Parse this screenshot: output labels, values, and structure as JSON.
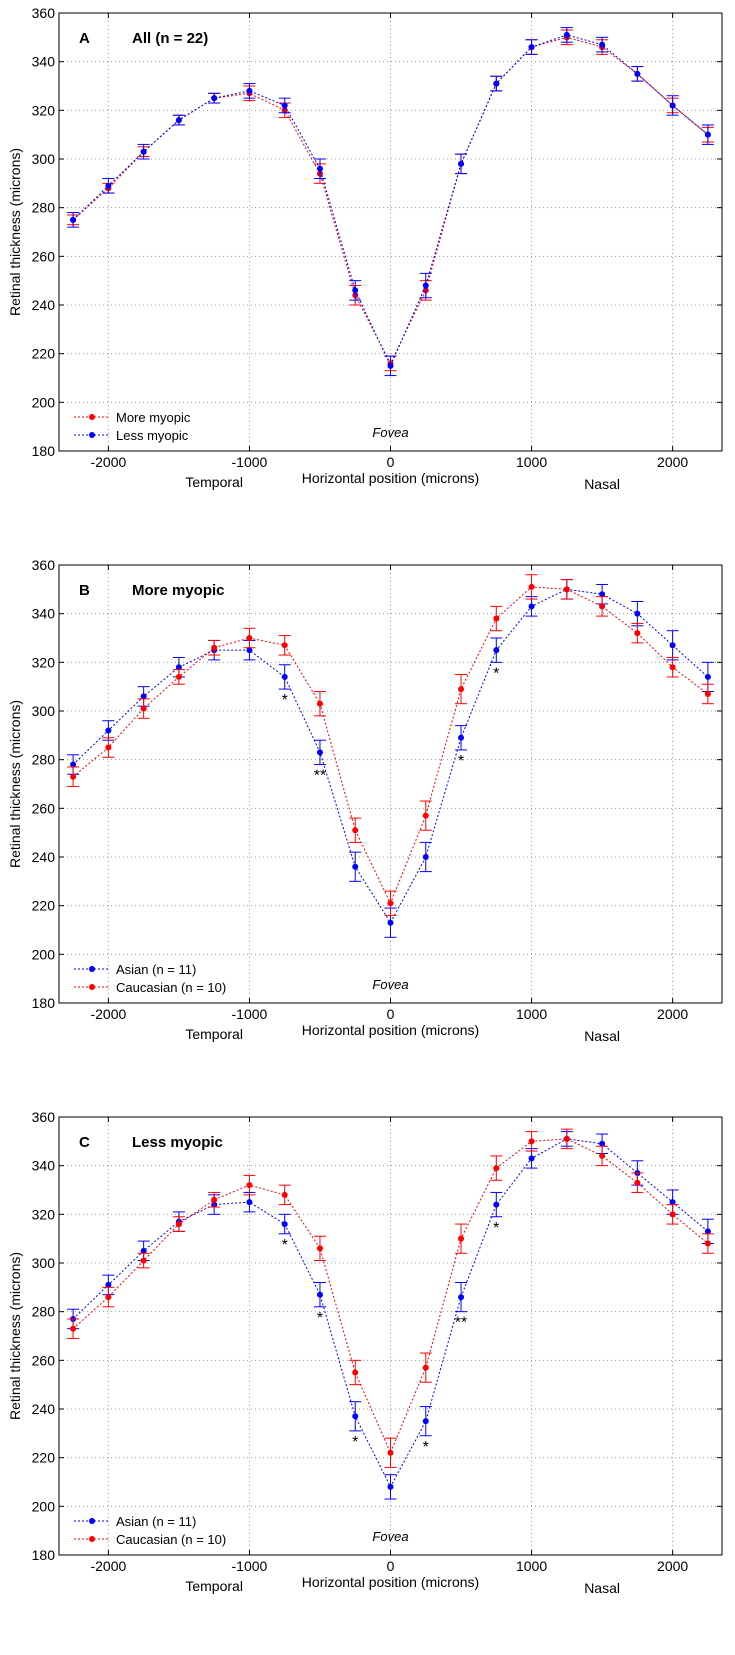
{
  "chart_data": [
    {
      "type": "line",
      "panel_letter": "A",
      "title": "All (n = 22)",
      "xlabel": "Horizontal position (microns)",
      "ylabel": "Retinal thickness (microns)",
      "side_labels": {
        "left": "Temporal",
        "right": "Nasal"
      },
      "annotation": "Fovea",
      "xlim": [
        -2350,
        2350
      ],
      "ylim": [
        180,
        360
      ],
      "xticks": [
        -2000,
        -1000,
        0,
        1000,
        2000
      ],
      "yticks": [
        180,
        200,
        220,
        240,
        260,
        280,
        300,
        320,
        340,
        360
      ],
      "grid": true,
      "legend_position": "bottom-left",
      "x": [
        -2250,
        -2000,
        -1750,
        -1500,
        -1250,
        -1000,
        -750,
        -500,
        -250,
        0,
        250,
        500,
        750,
        1000,
        1250,
        1500,
        1750,
        2000,
        2250
      ],
      "series": [
        {
          "name": "More myopic",
          "color": "#ff0000",
          "values": [
            275,
            288,
            303,
            316,
            325,
            327,
            320,
            294,
            244,
            216,
            246,
            298,
            331,
            346,
            350,
            346,
            335,
            322,
            310
          ],
          "errors": [
            2,
            2,
            2,
            2,
            2,
            3,
            3,
            4,
            4,
            3,
            4,
            4,
            3,
            3,
            3,
            3,
            3,
            3,
            3
          ]
        },
        {
          "name": "Less myopic",
          "color": "#0000ff",
          "values": [
            275,
            289,
            303,
            316,
            325,
            328,
            322,
            296,
            246,
            215,
            248,
            298,
            331,
            346,
            351,
            347,
            335,
            322,
            310
          ],
          "errors": [
            3,
            3,
            3,
            2,
            2,
            3,
            3,
            4,
            4,
            4,
            5,
            4,
            3,
            3,
            3,
            3,
            3,
            4,
            4
          ]
        }
      ],
      "significance": []
    },
    {
      "type": "line",
      "panel_letter": "B",
      "title": "More myopic",
      "xlabel": "Horizontal position (microns)",
      "ylabel": "Retinal thickness (microns)",
      "side_labels": {
        "left": "Temporal",
        "right": "Nasal"
      },
      "annotation": "Fovea",
      "xlim": [
        -2350,
        2350
      ],
      "ylim": [
        180,
        360
      ],
      "xticks": [
        -2000,
        -1000,
        0,
        1000,
        2000
      ],
      "yticks": [
        180,
        200,
        220,
        240,
        260,
        280,
        300,
        320,
        340,
        360
      ],
      "grid": true,
      "legend_position": "bottom-left",
      "x": [
        -2250,
        -2000,
        -1750,
        -1500,
        -1250,
        -1000,
        -750,
        -500,
        -250,
        0,
        250,
        500,
        750,
        1000,
        1250,
        1500,
        1750,
        2000,
        2250
      ],
      "series": [
        {
          "name": "Asian (n = 11)",
          "color": "#0000ff",
          "values": [
            278,
            292,
            306,
            318,
            325,
            325,
            314,
            283,
            236,
            213,
            240,
            289,
            325,
            343,
            350,
            348,
            340,
            327,
            314
          ],
          "errors": [
            4,
            4,
            4,
            4,
            4,
            4,
            5,
            5,
            6,
            6,
            6,
            5,
            5,
            4,
            4,
            4,
            5,
            6,
            6
          ]
        },
        {
          "name": "Caucasian (n = 10)",
          "color": "#ff0000",
          "values": [
            273,
            285,
            301,
            314,
            326,
            330,
            327,
            303,
            251,
            221,
            257,
            309,
            338,
            351,
            350,
            343,
            332,
            318,
            307
          ],
          "errors": [
            4,
            4,
            4,
            3,
            3,
            4,
            4,
            5,
            5,
            5,
            6,
            6,
            5,
            5,
            4,
            4,
            4,
            4,
            4
          ]
        }
      ],
      "significance": [
        {
          "x": -750,
          "label": "*"
        },
        {
          "x": -500,
          "label": "**"
        },
        {
          "x": 500,
          "label": "*"
        },
        {
          "x": 750,
          "label": "*"
        }
      ]
    },
    {
      "type": "line",
      "panel_letter": "C",
      "title": "Less myopic",
      "xlabel": "Horizontal position (microns)",
      "ylabel": "Retinal thickness (microns)",
      "side_labels": {
        "left": "Temporal",
        "right": "Nasal"
      },
      "annotation": "Fovea",
      "xlim": [
        -2350,
        2350
      ],
      "ylim": [
        180,
        360
      ],
      "xticks": [
        -2000,
        -1000,
        0,
        1000,
        2000
      ],
      "yticks": [
        180,
        200,
        220,
        240,
        260,
        280,
        300,
        320,
        340,
        360
      ],
      "grid": true,
      "legend_position": "bottom-left",
      "x": [
        -2250,
        -2000,
        -1750,
        -1500,
        -1250,
        -1000,
        -750,
        -500,
        -250,
        0,
        250,
        500,
        750,
        1000,
        1250,
        1500,
        1750,
        2000,
        2250
      ],
      "series": [
        {
          "name": "Asian (n = 11)",
          "color": "#0000ff",
          "values": [
            277,
            291,
            305,
            317,
            324,
            325,
            316,
            287,
            237,
            208,
            235,
            286,
            324,
            343,
            351,
            349,
            337,
            325,
            313
          ],
          "errors": [
            4,
            4,
            4,
            4,
            4,
            4,
            4,
            5,
            6,
            5,
            6,
            6,
            5,
            4,
            3,
            4,
            5,
            5,
            5
          ]
        },
        {
          "name": "Caucasian (n = 10)",
          "color": "#ff0000",
          "values": [
            273,
            286,
            301,
            316,
            326,
            332,
            328,
            306,
            255,
            222,
            257,
            310,
            339,
            350,
            351,
            344,
            333,
            320,
            308
          ],
          "errors": [
            4,
            4,
            3,
            3,
            3,
            4,
            4,
            5,
            5,
            6,
            6,
            6,
            5,
            4,
            4,
            4,
            4,
            4,
            4
          ]
        }
      ],
      "significance": [
        {
          "x": -750,
          "label": "*"
        },
        {
          "x": -500,
          "label": "*"
        },
        {
          "x": -250,
          "label": "*"
        },
        {
          "x": 250,
          "label": "*"
        },
        {
          "x": 500,
          "label": "**"
        },
        {
          "x": 750,
          "label": "*"
        }
      ]
    }
  ]
}
